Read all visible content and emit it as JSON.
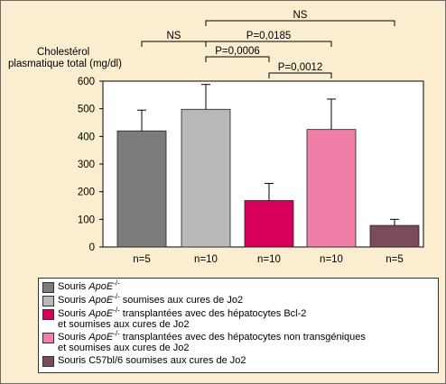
{
  "chart_data": {
    "type": "bar",
    "ylabel_line1": "Cholestérol",
    "ylabel_line2": "plasmatique total (mg/dl)",
    "ylim": [
      0,
      600
    ],
    "yticks": [
      "0",
      "100",
      "200",
      "300",
      "400",
      "500",
      "600"
    ],
    "categories": [
      "n=5",
      "n=10",
      "n=10",
      "n=10",
      "n=5"
    ],
    "values": [
      420,
      498,
      168,
      425,
      78
    ],
    "errors": [
      75,
      90,
      62,
      110,
      22
    ],
    "colors": [
      "#7b7b7b",
      "#b9b9b9",
      "#d6005c",
      "#ef7fa9",
      "#7a4b5a"
    ],
    "grid": false,
    "comparisons": [
      {
        "label": "NS",
        "from": 1,
        "to": 4
      },
      {
        "label": "NS",
        "from": 0,
        "to": 1
      },
      {
        "label": "P=0,0185",
        "from": 1,
        "to": 3
      },
      {
        "label": "P=0,0006",
        "from": 1,
        "to": 2
      },
      {
        "label": "P=0,0012",
        "from": 2,
        "to": 3
      }
    ]
  },
  "legend": {
    "items": [
      {
        "prefix": "Souris ",
        "italic": "ApoE",
        "sup": "-/-",
        "text": "",
        "text2": ""
      },
      {
        "prefix": "Souris ",
        "italic": "ApoE",
        "sup": "-/-",
        "text": " soumises aux cures de Jo2",
        "text2": ""
      },
      {
        "prefix": "Souris ",
        "italic": "ApoE",
        "sup": "-/-",
        "text": " transplantées avec des hépatocytes Bcl-2",
        "text2": "et soumises aux cures de Jo2"
      },
      {
        "prefix": "Souris ",
        "italic": "ApoE",
        "sup": "-/-",
        "text": " transplantées avec des hépatocytes non transgéniques",
        "text2": "et soumises aux cures de Jo2"
      },
      {
        "prefix": "Souris C57bl/6 soumises aux cures de Jo2",
        "italic": "",
        "sup": "",
        "text": "",
        "text2": ""
      }
    ]
  }
}
